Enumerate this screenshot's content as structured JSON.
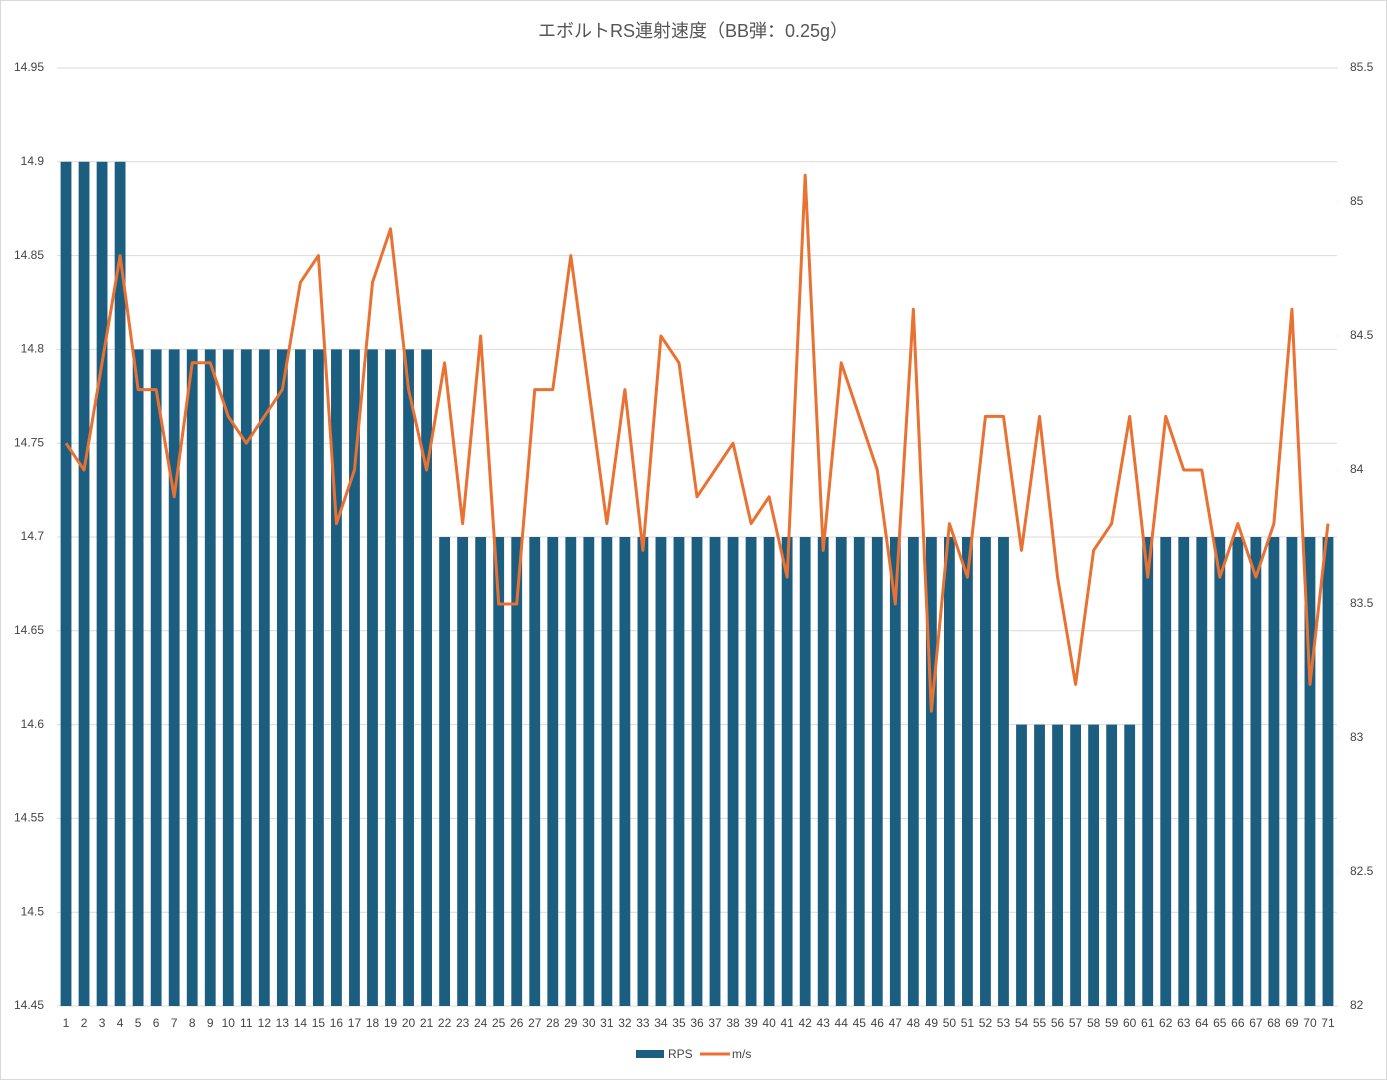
{
  "chart_data": {
    "type": "bar-line",
    "title": "エボルトRS連射速度（BB弾：0.25g）",
    "categories": [
      "1",
      "2",
      "3",
      "4",
      "5",
      "6",
      "7",
      "8",
      "9",
      "10",
      "11",
      "12",
      "13",
      "14",
      "15",
      "16",
      "17",
      "18",
      "19",
      "20",
      "21",
      "22",
      "23",
      "24",
      "25",
      "26",
      "27",
      "28",
      "29",
      "30",
      "31",
      "32",
      "33",
      "34",
      "35",
      "36",
      "37",
      "38",
      "39",
      "40",
      "41",
      "42",
      "43",
      "44",
      "45",
      "46",
      "47",
      "48",
      "49",
      "50",
      "51",
      "52",
      "53",
      "54",
      "55",
      "56",
      "57",
      "58",
      "59",
      "60",
      "61",
      "62",
      "63",
      "64",
      "65",
      "66",
      "67",
      "68",
      "69",
      "70",
      "71"
    ],
    "series": [
      {
        "name": "RPS",
        "type": "bar",
        "color": "#1b5e80",
        "values": [
          14.9,
          14.9,
          14.9,
          14.9,
          14.8,
          14.8,
          14.8,
          14.8,
          14.8,
          14.8,
          14.8,
          14.8,
          14.8,
          14.8,
          14.8,
          14.8,
          14.8,
          14.8,
          14.8,
          14.8,
          14.8,
          14.7,
          14.7,
          14.7,
          14.7,
          14.7,
          14.7,
          14.7,
          14.7,
          14.7,
          14.7,
          14.7,
          14.7,
          14.7,
          14.7,
          14.7,
          14.7,
          14.7,
          14.7,
          14.7,
          14.7,
          14.7,
          14.7,
          14.7,
          14.7,
          14.7,
          14.7,
          14.7,
          14.7,
          14.7,
          14.7,
          14.7,
          14.7,
          14.6,
          14.6,
          14.6,
          14.6,
          14.6,
          14.6,
          14.6,
          14.7,
          14.7,
          14.7,
          14.7,
          14.7,
          14.7,
          14.7,
          14.7,
          14.7,
          14.7,
          14.7
        ]
      },
      {
        "name": "m/s",
        "type": "line",
        "axis": "y2",
        "color": "#e97132",
        "values": [
          84.1,
          84.0,
          84.4,
          84.8,
          84.3,
          84.3,
          83.9,
          84.4,
          84.4,
          84.2,
          84.1,
          84.2,
          84.3,
          84.7,
          84.8,
          83.8,
          84.0,
          84.7,
          84.9,
          84.3,
          84.0,
          84.4,
          83.8,
          84.5,
          83.5,
          83.5,
          84.3,
          84.3,
          84.8,
          84.3,
          83.8,
          84.3,
          83.7,
          84.5,
          84.4,
          83.9,
          84.0,
          84.1,
          83.8,
          83.9,
          83.6,
          85.1,
          83.7,
          84.4,
          84.2,
          84.0,
          83.5,
          84.6,
          83.1,
          83.8,
          83.6,
          84.2,
          84.2,
          83.7,
          84.2,
          83.6,
          83.2,
          83.7,
          83.8,
          84.2,
          83.6,
          84.2,
          84.0,
          84.0,
          83.6,
          83.8,
          83.6,
          83.8,
          84.6,
          83.2,
          83.8
        ]
      }
    ],
    "ylim": [
      14.45,
      14.95
    ],
    "yticks": [
      14.45,
      14.5,
      14.55,
      14.6,
      14.65,
      14.7,
      14.75,
      14.8,
      14.85,
      14.9,
      14.95
    ],
    "y2lim": [
      82,
      85.5
    ],
    "y2ticks": [
      82,
      82.5,
      83,
      83.5,
      84,
      84.5,
      85,
      85.5
    ],
    "grid": true,
    "legend": "bottom"
  }
}
